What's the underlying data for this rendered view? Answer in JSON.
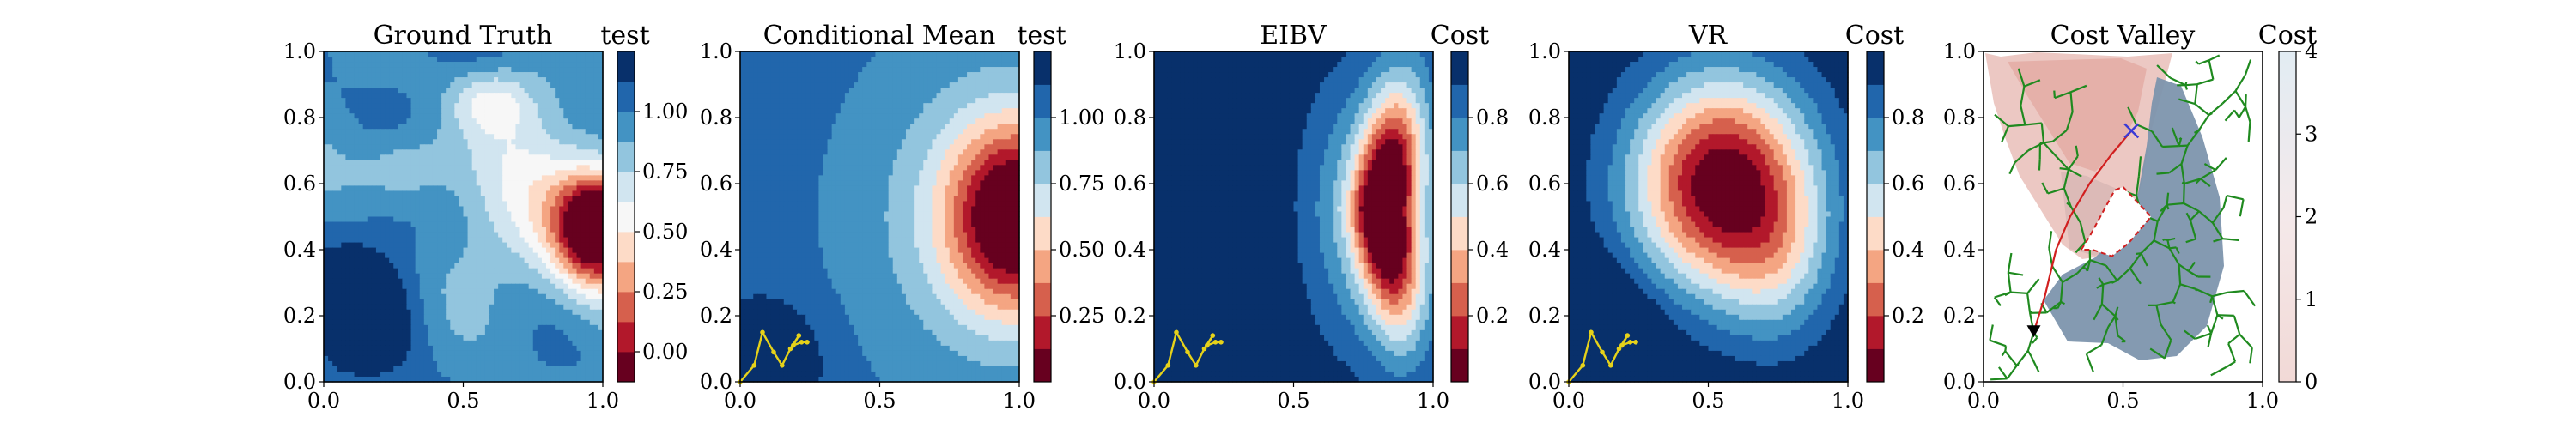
{
  "chart_data": [
    {
      "type": "heatmap",
      "title": "Ground Truth",
      "colorbar_label": "test",
      "colorbar_ticks": [
        "0.00",
        "0.25",
        "0.50",
        "0.75",
        "1.00"
      ],
      "colorbar_levels": [
        -0.125,
        0.0,
        0.125,
        0.25,
        0.375,
        0.5,
        0.625,
        0.75,
        0.875,
        1.0,
        1.125,
        1.25
      ],
      "xlim": [
        0,
        1
      ],
      "ylim": [
        0,
        1
      ],
      "xticks": [
        "0.0",
        "0.5",
        "1.0"
      ],
      "yticks": [
        "0.0",
        "0.2",
        "0.4",
        "0.6",
        "0.8",
        "1.0"
      ],
      "colormap": "RdBu",
      "trajectory": null
    },
    {
      "type": "heatmap",
      "title": "Conditional Mean",
      "colorbar_label": "test",
      "colorbar_ticks": [
        "0.25",
        "0.50",
        "0.75",
        "1.00"
      ],
      "colorbar_levels": [
        0.0,
        0.125,
        0.25,
        0.375,
        0.5,
        0.625,
        0.75,
        0.875,
        1.0,
        1.125,
        1.25
      ],
      "xlim": [
        0,
        1
      ],
      "ylim": [
        0,
        1
      ],
      "xticks": [
        "0.0",
        "0.5",
        "1.0"
      ],
      "yticks": [
        "0.0",
        "0.2",
        "0.4",
        "0.6",
        "0.8",
        "1.0"
      ],
      "colormap": "RdBu",
      "trajectory": [
        [
          0.0,
          0.0
        ],
        [
          0.05,
          0.05
        ],
        [
          0.08,
          0.15
        ],
        [
          0.12,
          0.09
        ],
        [
          0.15,
          0.05
        ],
        [
          0.18,
          0.1
        ],
        [
          0.21,
          0.14
        ],
        [
          0.19,
          0.11
        ],
        [
          0.22,
          0.12
        ],
        [
          0.24,
          0.12
        ]
      ]
    },
    {
      "type": "heatmap",
      "title": "EIBV",
      "colorbar_label": "Cost",
      "colorbar_ticks": [
        "0.2",
        "0.4",
        "0.6",
        "0.8"
      ],
      "colorbar_levels": [
        0.0,
        0.1,
        0.2,
        0.3,
        0.4,
        0.5,
        0.6,
        0.7,
        0.8,
        0.9,
        1.0
      ],
      "xlim": [
        0,
        1
      ],
      "ylim": [
        0,
        1
      ],
      "xticks": [
        "0.0",
        "0.5",
        "1.0"
      ],
      "yticks": [
        "0.0",
        "0.2",
        "0.4",
        "0.6",
        "0.8",
        "1.0"
      ],
      "colormap": "RdBu",
      "trajectory": [
        [
          0.0,
          0.0
        ],
        [
          0.05,
          0.05
        ],
        [
          0.08,
          0.15
        ],
        [
          0.12,
          0.09
        ],
        [
          0.15,
          0.05
        ],
        [
          0.18,
          0.1
        ],
        [
          0.21,
          0.14
        ],
        [
          0.19,
          0.11
        ],
        [
          0.22,
          0.12
        ],
        [
          0.24,
          0.12
        ]
      ]
    },
    {
      "type": "heatmap",
      "title": "VR",
      "colorbar_label": "Cost",
      "colorbar_ticks": [
        "0.2",
        "0.4",
        "0.6",
        "0.8"
      ],
      "colorbar_levels": [
        0.0,
        0.1,
        0.2,
        0.3,
        0.4,
        0.5,
        0.6,
        0.7,
        0.8,
        0.9,
        1.0
      ],
      "xlim": [
        0,
        1
      ],
      "ylim": [
        0,
        1
      ],
      "xticks": [
        "0.0",
        "0.5",
        "1.0"
      ],
      "yticks": [
        "0.0",
        "0.2",
        "0.4",
        "0.6",
        "0.8",
        "1.0"
      ],
      "colormap": "RdBu",
      "trajectory": [
        [
          0.0,
          0.0
        ],
        [
          0.05,
          0.05
        ],
        [
          0.08,
          0.15
        ],
        [
          0.12,
          0.09
        ],
        [
          0.15,
          0.05
        ],
        [
          0.18,
          0.1
        ],
        [
          0.21,
          0.14
        ],
        [
          0.19,
          0.11
        ],
        [
          0.22,
          0.12
        ],
        [
          0.24,
          0.12
        ]
      ]
    },
    {
      "type": "heatmap",
      "title": "Cost Valley",
      "colorbar_label": "Cost",
      "colorbar_ticks": [
        "0",
        "1",
        "2",
        "3",
        "4"
      ],
      "colorbar_range": [
        0,
        4
      ],
      "xlim": [
        0,
        1
      ],
      "ylim": [
        0,
        1
      ],
      "xticks": [
        "0.0",
        "0.5",
        "1.0"
      ],
      "yticks": [
        "0.0",
        "0.2",
        "0.4",
        "0.6",
        "0.8",
        "1.0"
      ],
      "colormap": "RdBu_continuous",
      "start_point": [
        0.18,
        0.15
      ],
      "target_point": [
        0.53,
        0.76
      ],
      "planned_path": [
        [
          0.18,
          0.15
        ],
        [
          0.22,
          0.26
        ],
        [
          0.26,
          0.4
        ],
        [
          0.31,
          0.5
        ],
        [
          0.38,
          0.6
        ],
        [
          0.46,
          0.69
        ],
        [
          0.53,
          0.76
        ]
      ],
      "obstacle_polygon": [
        [
          0.35,
          0.4
        ],
        [
          0.38,
          0.44
        ],
        [
          0.47,
          0.58
        ],
        [
          0.5,
          0.59
        ],
        [
          0.6,
          0.5
        ],
        [
          0.56,
          0.46
        ],
        [
          0.52,
          0.42
        ],
        [
          0.46,
          0.38
        ],
        [
          0.39,
          0.4
        ]
      ]
    }
  ],
  "colors": {
    "trajectory": "#e6d21a",
    "tree": "#1f8a1f",
    "planned_path": "#d11f1f",
    "start_marker": "#000000",
    "target_marker": "#3a3ad6"
  }
}
